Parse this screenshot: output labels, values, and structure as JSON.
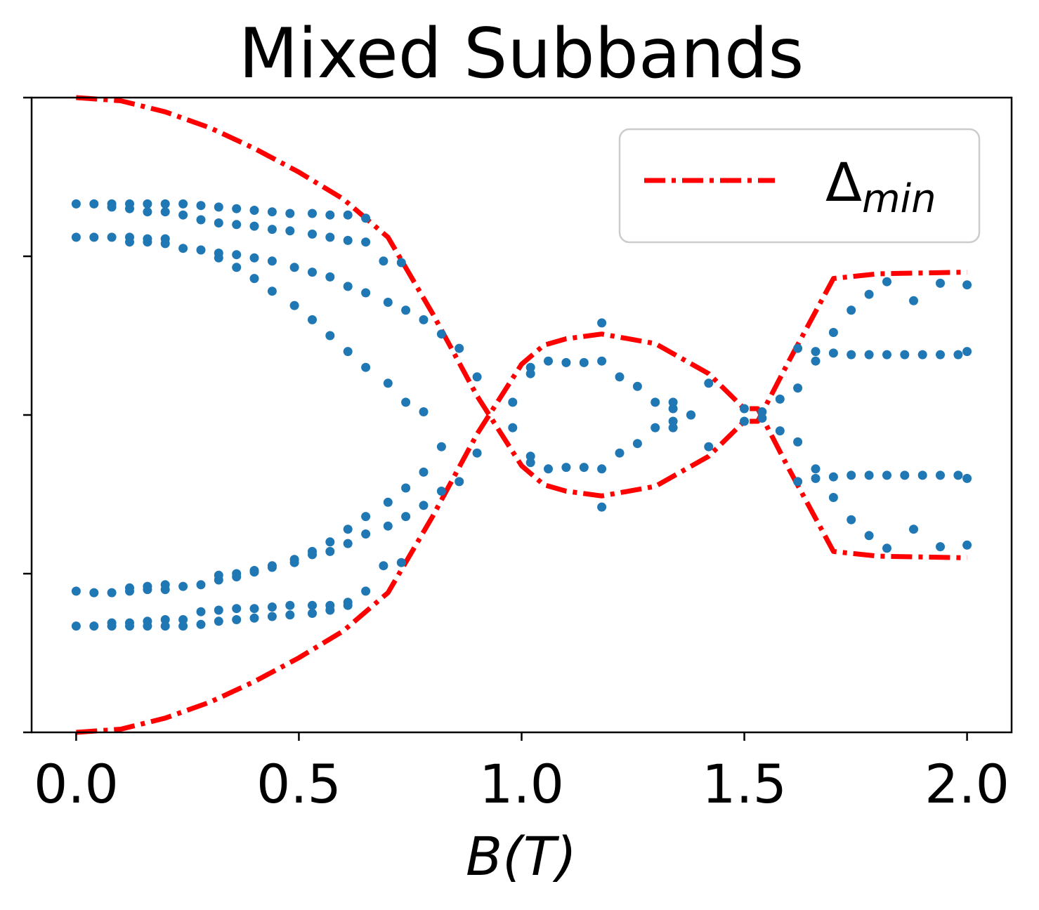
{
  "chart_data": {
    "type": "scatter",
    "title": "Mixed Subbands",
    "xlabel": "B(T)",
    "xlabel_parts": {
      "italic_var": "B",
      "open": "(",
      "unit": "T",
      "close": ")"
    },
    "ylabel": "",
    "xlim": [
      -0.1,
      2.1
    ],
    "ylim": [
      -1.0,
      1.0
    ],
    "x_ticks": [
      0.0,
      0.5,
      1.0,
      1.5,
      2.0
    ],
    "x_tick_labels": [
      "0.0",
      "0.5",
      "1.0",
      "1.5",
      "2.0"
    ],
    "y_ticks": [
      -1.0,
      -0.5,
      0.0,
      0.5,
      1.0
    ],
    "y_tick_labels": [
      "",
      "",
      "",
      "",
      ""
    ],
    "grid": false,
    "legend": {
      "placement": "top-right",
      "entries": [
        {
          "label_main": "Δ",
          "label_sub": "min",
          "series": "delta_min"
        }
      ]
    },
    "series": [
      {
        "id": "delta_min_upper",
        "legend_ref": "delta_min",
        "kind": "line",
        "style": "dashdot",
        "color": "#ff0000",
        "x": [
          0.0,
          0.1,
          0.2,
          0.3,
          0.4,
          0.5,
          0.6,
          0.7,
          0.8,
          0.9,
          1.0,
          1.05,
          1.1,
          1.18,
          1.3,
          1.42,
          1.5,
          1.53,
          1.6,
          1.7,
          1.8,
          2.0
        ],
        "y": [
          1.0,
          0.99,
          0.955,
          0.905,
          0.84,
          0.765,
          0.68,
          0.56,
          0.32,
          0.06,
          -0.16,
          -0.22,
          -0.24,
          -0.255,
          -0.225,
          -0.13,
          -0.02,
          -0.02,
          0.17,
          0.43,
          0.445,
          0.45
        ]
      },
      {
        "id": "delta_min_lower",
        "legend_ref": "delta_min",
        "kind": "line",
        "style": "dashdot",
        "color": "#ff0000",
        "x": [
          0.0,
          0.1,
          0.2,
          0.3,
          0.4,
          0.5,
          0.6,
          0.7,
          0.8,
          0.9,
          1.0,
          1.05,
          1.1,
          1.18,
          1.3,
          1.42,
          1.5,
          1.53,
          1.6,
          1.7,
          1.8,
          2.0
        ],
        "y": [
          -1.0,
          -0.99,
          -0.955,
          -0.905,
          -0.84,
          -0.765,
          -0.68,
          -0.56,
          -0.32,
          -0.06,
          0.16,
          0.22,
          0.24,
          0.255,
          0.225,
          0.13,
          0.02,
          0.02,
          -0.17,
          -0.43,
          -0.445,
          -0.45
        ]
      },
      {
        "id": "subbands",
        "kind": "points",
        "color": "#1f77b4",
        "points": [
          [
            0.0,
            0.665
          ],
          [
            0.04,
            0.665
          ],
          [
            0.08,
            0.665
          ],
          [
            0.12,
            0.665
          ],
          [
            0.16,
            0.665
          ],
          [
            0.2,
            0.665
          ],
          [
            0.24,
            0.665
          ],
          [
            0.08,
            0.655
          ],
          [
            0.12,
            0.65
          ],
          [
            0.16,
            0.64
          ],
          [
            0.2,
            0.64
          ],
          [
            0.24,
            0.63
          ],
          [
            0.28,
            0.66
          ],
          [
            0.32,
            0.655
          ],
          [
            0.36,
            0.65
          ],
          [
            0.4,
            0.645
          ],
          [
            0.44,
            0.64
          ],
          [
            0.48,
            0.635
          ],
          [
            0.53,
            0.635
          ],
          [
            0.57,
            0.63
          ],
          [
            0.61,
            0.63
          ],
          [
            0.65,
            0.62
          ],
          [
            0.28,
            0.615
          ],
          [
            0.32,
            0.605
          ],
          [
            0.36,
            0.6
          ],
          [
            0.4,
            0.595
          ],
          [
            0.44,
            0.585
          ],
          [
            0.48,
            0.58
          ],
          [
            0.53,
            0.57
          ],
          [
            0.57,
            0.56
          ],
          [
            0.61,
            0.55
          ],
          [
            0.65,
            0.545
          ],
          [
            0.0,
            0.56
          ],
          [
            0.04,
            0.56
          ],
          [
            0.08,
            0.56
          ],
          [
            0.12,
            0.56
          ],
          [
            0.16,
            0.555
          ],
          [
            0.2,
            0.555
          ],
          [
            0.12,
            0.545
          ],
          [
            0.16,
            0.545
          ],
          [
            0.2,
            0.54
          ],
          [
            0.24,
            0.525
          ],
          [
            0.28,
            0.52
          ],
          [
            0.32,
            0.51
          ],
          [
            0.36,
            0.505
          ],
          [
            0.4,
            0.495
          ],
          [
            0.44,
            0.485
          ],
          [
            0.49,
            0.465
          ],
          [
            0.53,
            0.45
          ],
          [
            0.57,
            0.435
          ],
          [
            0.61,
            0.405
          ],
          [
            0.65,
            0.385
          ],
          [
            0.7,
            0.355
          ],
          [
            0.74,
            0.33
          ],
          [
            0.78,
            0.3
          ],
          [
            0.82,
            0.255
          ],
          [
            0.32,
            0.495
          ],
          [
            0.36,
            0.465
          ],
          [
            0.4,
            0.43
          ],
          [
            0.44,
            0.39
          ],
          [
            0.49,
            0.345
          ],
          [
            0.53,
            0.3
          ],
          [
            0.57,
            0.25
          ],
          [
            0.61,
            0.2
          ],
          [
            0.65,
            0.15
          ],
          [
            0.7,
            0.1
          ],
          [
            0.74,
            0.04
          ],
          [
            0.78,
            0.01
          ],
          [
            0.69,
            0.485
          ],
          [
            0.73,
            0.48
          ],
          [
            0.86,
            0.21
          ],
          [
            0.9,
            0.12
          ],
          [
            0.98,
            0.04
          ],
          [
            1.02,
            0.15
          ],
          [
            1.06,
            0.17
          ],
          [
            1.1,
            0.165
          ],
          [
            1.14,
            0.165
          ],
          [
            1.18,
            0.17
          ],
          [
            1.22,
            0.12
          ],
          [
            1.26,
            0.09
          ],
          [
            1.3,
            0.04
          ],
          [
            1.34,
            0.04
          ],
          [
            1.34,
            0.02
          ],
          [
            1.38,
            0.0
          ],
          [
            1.42,
            0.1
          ],
          [
            1.5,
            0.02
          ],
          [
            1.54,
            0.01
          ],
          [
            1.58,
            0.05
          ],
          [
            1.62,
            0.085
          ],
          [
            1.66,
            0.2
          ],
          [
            1.7,
            0.26
          ],
          [
            1.74,
            0.33
          ],
          [
            1.78,
            0.38
          ],
          [
            1.82,
            0.42
          ],
          [
            1.88,
            0.36
          ],
          [
            1.94,
            0.415
          ],
          [
            2.0,
            0.41
          ],
          [
            1.62,
            0.21
          ],
          [
            1.66,
            0.17
          ],
          [
            1.7,
            0.195
          ],
          [
            1.74,
            0.19
          ],
          [
            1.78,
            0.19
          ],
          [
            1.82,
            0.19
          ],
          [
            1.86,
            0.19
          ],
          [
            1.9,
            0.19
          ],
          [
            1.94,
            0.19
          ],
          [
            1.98,
            0.19
          ],
          [
            2.0,
            0.2
          ],
          [
            1.02,
            0.13
          ],
          [
            1.18,
            0.29
          ],
          [
            0.0,
            -0.555
          ],
          [
            0.04,
            -0.56
          ],
          [
            0.08,
            -0.56
          ],
          [
            0.12,
            -0.555
          ],
          [
            0.16,
            -0.55
          ],
          [
            0.2,
            -0.55
          ],
          [
            0.24,
            -0.54
          ],
          [
            0.28,
            -0.535
          ],
          [
            0.12,
            -0.545
          ],
          [
            0.16,
            -0.54
          ],
          [
            0.2,
            -0.535
          ],
          [
            0.32,
            -0.52
          ],
          [
            0.36,
            -0.51
          ],
          [
            0.4,
            -0.495
          ],
          [
            0.44,
            -0.48
          ],
          [
            0.49,
            -0.455
          ],
          [
            0.53,
            -0.43
          ],
          [
            0.57,
            -0.4
          ],
          [
            0.61,
            -0.36
          ],
          [
            0.65,
            -0.32
          ],
          [
            0.7,
            -0.275
          ],
          [
            0.74,
            -0.23
          ],
          [
            0.78,
            -0.18
          ],
          [
            0.82,
            -0.1
          ],
          [
            0.32,
            -0.505
          ],
          [
            0.36,
            -0.5
          ],
          [
            0.4,
            -0.49
          ],
          [
            0.44,
            -0.475
          ],
          [
            0.49,
            -0.465
          ],
          [
            0.53,
            -0.44
          ],
          [
            0.57,
            -0.43
          ],
          [
            0.61,
            -0.405
          ],
          [
            0.65,
            -0.375
          ],
          [
            0.7,
            -0.35
          ],
          [
            0.74,
            -0.32
          ],
          [
            0.78,
            -0.285
          ],
          [
            0.82,
            -0.24
          ],
          [
            0.0,
            -0.665
          ],
          [
            0.04,
            -0.665
          ],
          [
            0.08,
            -0.665
          ],
          [
            0.12,
            -0.665
          ],
          [
            0.16,
            -0.665
          ],
          [
            0.2,
            -0.665
          ],
          [
            0.08,
            -0.655
          ],
          [
            0.12,
            -0.655
          ],
          [
            0.16,
            -0.65
          ],
          [
            0.2,
            -0.645
          ],
          [
            0.24,
            -0.645
          ],
          [
            0.28,
            -0.62
          ],
          [
            0.32,
            -0.615
          ],
          [
            0.36,
            -0.61
          ],
          [
            0.4,
            -0.61
          ],
          [
            0.44,
            -0.605
          ],
          [
            0.48,
            -0.6
          ],
          [
            0.53,
            -0.6
          ],
          [
            0.57,
            -0.6
          ],
          [
            0.61,
            -0.6
          ],
          [
            0.24,
            -0.665
          ],
          [
            0.28,
            -0.66
          ],
          [
            0.32,
            -0.65
          ],
          [
            0.36,
            -0.645
          ],
          [
            0.4,
            -0.64
          ],
          [
            0.44,
            -0.635
          ],
          [
            0.48,
            -0.63
          ],
          [
            0.53,
            -0.625
          ],
          [
            0.57,
            -0.615
          ],
          [
            0.61,
            -0.59
          ],
          [
            0.65,
            -0.555
          ],
          [
            0.69,
            -0.475
          ],
          [
            0.73,
            -0.465
          ],
          [
            0.86,
            -0.21
          ],
          [
            0.9,
            -0.12
          ],
          [
            0.98,
            -0.04
          ],
          [
            1.02,
            -0.15
          ],
          [
            1.06,
            -0.17
          ],
          [
            1.1,
            -0.165
          ],
          [
            1.14,
            -0.165
          ],
          [
            1.18,
            -0.17
          ],
          [
            1.22,
            -0.12
          ],
          [
            1.26,
            -0.09
          ],
          [
            1.3,
            -0.04
          ],
          [
            1.34,
            -0.04
          ],
          [
            1.34,
            -0.02
          ],
          [
            1.38,
            0.0
          ],
          [
            1.42,
            -0.1
          ],
          [
            1.5,
            -0.02
          ],
          [
            1.54,
            -0.01
          ],
          [
            1.58,
            -0.05
          ],
          [
            1.62,
            -0.085
          ],
          [
            1.66,
            -0.2
          ],
          [
            1.7,
            -0.26
          ],
          [
            1.74,
            -0.33
          ],
          [
            1.78,
            -0.38
          ],
          [
            1.82,
            -0.42
          ],
          [
            1.88,
            -0.36
          ],
          [
            1.94,
            -0.415
          ],
          [
            2.0,
            -0.41
          ],
          [
            1.62,
            -0.21
          ],
          [
            1.66,
            -0.17
          ],
          [
            1.7,
            -0.195
          ],
          [
            1.74,
            -0.19
          ],
          [
            1.78,
            -0.19
          ],
          [
            1.82,
            -0.19
          ],
          [
            1.86,
            -0.19
          ],
          [
            1.9,
            -0.19
          ],
          [
            1.94,
            -0.19
          ],
          [
            1.98,
            -0.19
          ],
          [
            2.0,
            -0.2
          ],
          [
            1.02,
            -0.13
          ],
          [
            1.18,
            -0.29
          ]
        ]
      }
    ]
  }
}
